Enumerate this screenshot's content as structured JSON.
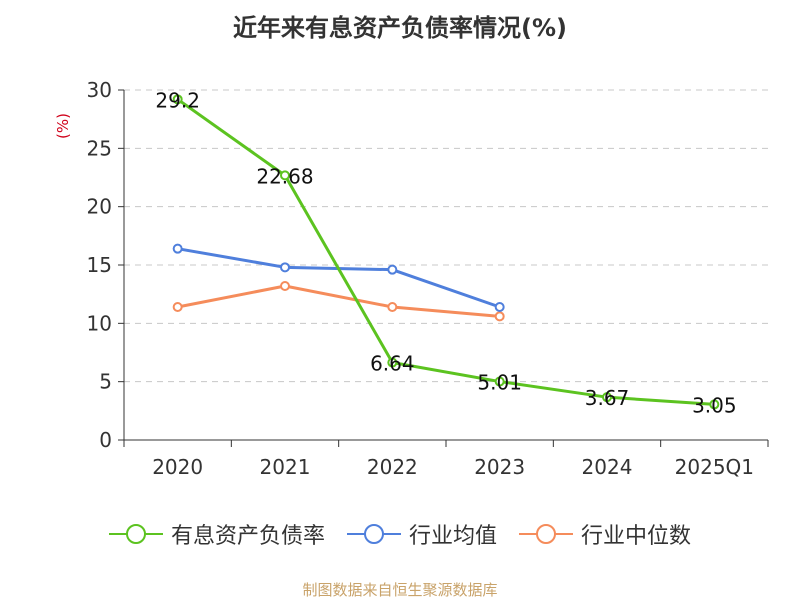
{
  "title": "近年来有息资产负债率情况(%)",
  "y_unit": "(%)",
  "source_note": "制图数据来自恒生聚源数据库",
  "chart_data": {
    "type": "line",
    "categories": [
      "2020",
      "2021",
      "2022",
      "2023",
      "2024",
      "2025Q1"
    ],
    "ylim": [
      0,
      30
    ],
    "yticks": [
      0,
      5,
      10,
      15,
      20,
      25,
      30
    ],
    "grid": true,
    "legend_position": "bottom",
    "series": [
      {
        "name": "有息资产负债率",
        "color": "#5cc320",
        "values": [
          29.2,
          22.68,
          6.64,
          5.01,
          3.67,
          3.05
        ],
        "labels": [
          "29.2",
          "22.68",
          "6.64",
          "5.01",
          "3.67",
          "3.05"
        ]
      },
      {
        "name": "行业均值",
        "color": "#4f7fdc",
        "values": [
          16.4,
          14.8,
          14.6,
          11.4,
          null,
          null
        ]
      },
      {
        "name": "行业中位数",
        "color": "#f58c5b",
        "values": [
          11.4,
          13.2,
          11.4,
          10.6,
          null,
          null
        ]
      }
    ]
  }
}
